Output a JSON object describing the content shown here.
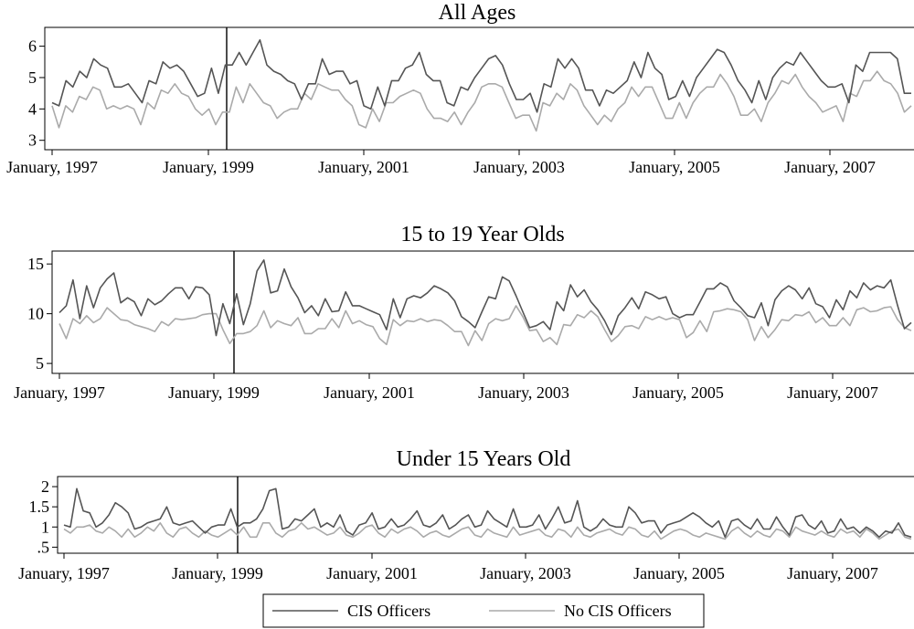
{
  "chart_data": [
    {
      "type": "line",
      "title": "All Ages",
      "ylim": [
        2.7,
        6.6
      ],
      "yticks": [
        3,
        4,
        5,
        6
      ],
      "ytick_labels": [
        "3",
        "4",
        "5",
        "6"
      ],
      "x_ticks": [
        "January, 1997",
        "January, 1999",
        "January, 2001",
        "January, 2003",
        "January, 2005",
        "January, 2007"
      ],
      "vline_at": "January, 1999",
      "series": [
        {
          "name": "CIS Officers",
          "color": "#555555",
          "values": [
            4.2,
            4.1,
            4.9,
            4.7,
            5.2,
            5.0,
            5.6,
            5.4,
            5.3,
            4.7,
            4.7,
            4.8,
            4.5,
            4.2,
            4.9,
            4.8,
            5.5,
            5.3,
            5.4,
            5.2,
            4.8,
            4.4,
            4.5,
            5.3,
            4.5,
            5.4,
            5.4,
            5.8,
            5.4,
            5.8,
            6.2,
            5.4,
            5.2,
            5.1,
            4.9,
            4.8,
            4.3,
            4.8,
            4.8,
            5.6,
            5.1,
            5.2,
            5.2,
            4.8,
            4.9,
            4.1,
            4.0,
            4.7,
            4.1,
            4.9,
            4.9,
            5.3,
            5.4,
            5.8,
            5.1,
            4.9,
            4.9,
            4.2,
            4.1,
            4.7,
            4.6,
            5.0,
            5.3,
            5.6,
            5.7,
            5.4,
            4.8,
            4.3,
            4.3,
            4.5,
            3.9,
            4.8,
            4.7,
            5.6,
            5.3,
            5.6,
            5.3,
            4.6,
            4.6,
            4.1,
            4.6,
            4.5,
            4.7,
            4.9,
            5.5,
            5.0,
            5.8,
            5.3,
            5.1,
            4.3,
            4.4,
            4.9,
            4.4,
            5.0,
            5.3,
            5.6,
            5.9,
            5.8,
            5.4,
            4.9,
            4.6,
            4.2,
            4.9,
            4.3,
            5.0,
            5.3,
            5.5,
            5.4,
            5.8,
            5.5,
            5.2,
            4.9,
            4.7,
            4.7,
            4.8,
            4.2,
            5.4,
            5.2,
            5.8,
            5.8,
            5.8,
            5.8,
            5.6,
            4.5,
            4.5
          ]
        },
        {
          "name": "No CIS Officers",
          "color": "#aaaaaa",
          "values": [
            4.1,
            3.4,
            4.1,
            3.9,
            4.4,
            4.3,
            4.7,
            4.6,
            4.0,
            4.1,
            4.0,
            4.1,
            4.0,
            3.5,
            4.2,
            4.0,
            4.6,
            4.5,
            4.8,
            4.5,
            4.4,
            4.0,
            3.8,
            4.0,
            3.5,
            3.9,
            3.9,
            4.7,
            4.2,
            4.8,
            4.5,
            4.2,
            4.1,
            3.7,
            3.9,
            4.0,
            4.0,
            4.5,
            4.3,
            4.8,
            4.7,
            4.6,
            4.6,
            4.3,
            4.1,
            3.5,
            3.4,
            4.0,
            3.6,
            4.2,
            4.2,
            4.4,
            4.5,
            4.6,
            4.5,
            4.0,
            3.7,
            3.7,
            3.6,
            3.9,
            3.5,
            3.9,
            4.2,
            4.7,
            4.8,
            4.8,
            4.7,
            4.2,
            3.7,
            3.8,
            3.8,
            3.3,
            4.2,
            4.1,
            4.5,
            4.3,
            4.8,
            4.6,
            4.1,
            3.8,
            3.5,
            3.8,
            3.6,
            4.0,
            4.2,
            4.7,
            4.4,
            4.7,
            4.7,
            4.2,
            3.7,
            3.7,
            4.2,
            3.7,
            4.2,
            4.5,
            4.7,
            4.7,
            5.1,
            4.8,
            4.4,
            3.8,
            3.8,
            4.0,
            3.6,
            4.2,
            4.5,
            4.9,
            4.8,
            5.1,
            4.7,
            4.4,
            4.2,
            3.9,
            4.0,
            4.1,
            3.6,
            4.5,
            4.4,
            4.9,
            4.9,
            5.2,
            4.9,
            4.8,
            4.5,
            3.9,
            4.1
          ]
        }
      ]
    },
    {
      "type": "line",
      "title": "15 to 19 Year Olds",
      "ylim": [
        4.0,
        16.3
      ],
      "yticks": [
        5,
        10,
        15
      ],
      "ytick_labels": [
        "5",
        "10",
        "15"
      ],
      "x_ticks": [
        "January, 1997",
        "January, 1999",
        "January, 2001",
        "January, 2003",
        "January, 2005",
        "January, 2007"
      ],
      "vline_at": "January, 1999",
      "series": [
        {
          "name": "CIS Officers",
          "color": "#555555",
          "values": [
            10.1,
            10.8,
            13.4,
            9.5,
            12.8,
            10.6,
            12.6,
            13.5,
            14.1,
            11.1,
            11.6,
            11.2,
            9.8,
            11.5,
            10.9,
            11.3,
            12.0,
            12.6,
            12.6,
            11.5,
            12.7,
            12.6,
            11.9,
            7.8,
            11.0,
            9.0,
            12.0,
            8.9,
            11.0,
            14.3,
            15.4,
            12.1,
            12.3,
            14.5,
            12.7,
            11.6,
            10.1,
            10.8,
            9.8,
            11.5,
            10.2,
            10.3,
            12.2,
            10.8,
            10.8,
            10.5,
            10.2,
            9.9,
            8.4,
            11.5,
            9.6,
            11.5,
            11.8,
            11.6,
            12.1,
            12.8,
            12.5,
            12.1,
            11.3,
            9.7,
            9.2,
            8.6,
            10.2,
            11.7,
            11.5,
            13.7,
            13.3,
            11.8,
            10.2,
            8.6,
            8.8,
            9.2,
            8.4,
            11.2,
            10.3,
            12.9,
            11.7,
            12.4,
            11.2,
            10.4,
            9.3,
            7.9,
            9.8,
            10.6,
            11.6,
            10.5,
            12.2,
            11.9,
            11.5,
            11.7,
            10.0,
            9.6,
            9.9,
            9.9,
            11.2,
            12.5,
            12.5,
            13.1,
            12.7,
            11.3,
            10.6,
            9.8,
            9.6,
            11.1,
            8.8,
            11.4,
            12.3,
            12.8,
            12.4,
            11.5,
            12.6,
            11.0,
            10.7,
            9.6,
            11.4,
            10.4,
            12.3,
            11.6,
            13.1,
            12.4,
            12.8,
            12.6,
            13.4,
            10.8,
            8.5,
            9.1
          ]
        },
        {
          "name": "No CIS Officers",
          "color": "#aaaaaa",
          "values": [
            9.0,
            7.5,
            9.5,
            9.0,
            9.8,
            9.1,
            9.5,
            10.6,
            10.0,
            9.4,
            9.3,
            8.9,
            8.7,
            8.5,
            8.2,
            9.2,
            8.8,
            9.5,
            9.4,
            9.5,
            9.6,
            9.9,
            10.0,
            10.0,
            8.4,
            7.0,
            8.0,
            8.0,
            8.2,
            8.8,
            10.3,
            8.6,
            9.3,
            9.0,
            8.8,
            9.6,
            8.0,
            8.0,
            8.5,
            8.5,
            9.5,
            8.6,
            10.3,
            9.0,
            9.3,
            8.9,
            8.7,
            7.5,
            6.9,
            9.4,
            8.8,
            9.3,
            9.2,
            9.5,
            9.2,
            9.4,
            9.3,
            8.8,
            8.2,
            8.2,
            6.8,
            8.3,
            7.3,
            9.0,
            9.5,
            9.3,
            9.5,
            10.8,
            9.7,
            8.3,
            8.4,
            7.2,
            7.6,
            6.9,
            8.9,
            8.8,
            9.9,
            9.6,
            10.3,
            9.7,
            8.4,
            7.2,
            7.8,
            8.7,
            8.8,
            8.5,
            9.7,
            9.4,
            9.7,
            9.4,
            9.6,
            9.4,
            7.6,
            8.1,
            9.3,
            8.2,
            10.2,
            10.3,
            10.5,
            10.4,
            10.2,
            9.4,
            7.3,
            8.7,
            7.6,
            8.4,
            9.4,
            9.3,
            9.9,
            9.8,
            10.2,
            9.1,
            9.6,
            8.8,
            8.8,
            9.6,
            8.8,
            10.4,
            10.6,
            10.2,
            10.3,
            10.6,
            10.7,
            9.4,
            8.6,
            8.3
          ]
        }
      ]
    },
    {
      "type": "line",
      "title": "Under 15 Years Old",
      "ylim": [
        0.35,
        2.25
      ],
      "yticks": [
        0.5,
        1,
        1.5,
        2
      ],
      "ytick_labels": [
        ".5",
        "1",
        "1.5",
        "2"
      ],
      "x_ticks": [
        "January, 1997",
        "January, 1999",
        "January, 2001",
        "January, 2003",
        "January, 2005",
        "January, 2007"
      ],
      "vline_at": "January, 1999",
      "series": [
        {
          "name": "CIS Officers",
          "color": "#555555",
          "values": [
            1.05,
            1.0,
            1.95,
            1.4,
            1.35,
            1.0,
            1.1,
            1.3,
            1.6,
            1.5,
            1.35,
            0.95,
            1.0,
            1.1,
            1.15,
            1.2,
            1.5,
            1.1,
            1.05,
            1.1,
            1.15,
            1.0,
            0.85,
            1.0,
            1.05,
            1.05,
            1.45,
            1.0,
            1.1,
            1.1,
            1.2,
            1.45,
            1.9,
            1.95,
            0.95,
            1.0,
            1.2,
            1.15,
            1.3,
            1.45,
            1.0,
            1.1,
            1.0,
            1.3,
            0.9,
            0.8,
            1.05,
            1.1,
            1.35,
            0.95,
            1.0,
            1.2,
            1.0,
            1.05,
            1.2,
            1.4,
            1.05,
            1.0,
            1.1,
            1.3,
            0.95,
            1.05,
            1.2,
            1.3,
            1.0,
            1.05,
            1.4,
            1.2,
            1.1,
            1.0,
            1.45,
            1.0,
            1.0,
            1.05,
            1.3,
            0.95,
            1.2,
            1.5,
            1.1,
            1.15,
            1.65,
            1.0,
            0.9,
            1.0,
            1.2,
            1.05,
            1.0,
            1.0,
            1.5,
            1.35,
            1.1,
            1.15,
            1.15,
            0.85,
            1.05,
            1.1,
            1.15,
            1.25,
            1.35,
            1.25,
            1.1,
            1.0,
            1.15,
            0.75,
            1.15,
            1.2,
            1.05,
            0.95,
            1.2,
            0.95,
            0.95,
            1.25,
            1.0,
            0.8,
            1.25,
            1.3,
            1.05,
            0.95,
            1.15,
            0.85,
            0.9,
            1.2,
            0.95,
            1.0,
            0.85,
            1.0,
            0.9,
            0.75,
            0.9,
            0.85,
            1.1,
            0.8,
            0.75
          ]
        },
        {
          "name": "No CIS Officers",
          "color": "#aaaaaa",
          "values": [
            0.95,
            0.85,
            1.0,
            1.0,
            1.05,
            0.9,
            0.85,
            1.0,
            0.9,
            0.75,
            0.95,
            0.75,
            0.85,
            1.0,
            0.9,
            1.1,
            0.85,
            0.75,
            0.95,
            1.0,
            0.85,
            0.75,
            0.9,
            0.8,
            0.75,
            0.85,
            0.95,
            0.8,
            1.0,
            0.75,
            0.75,
            1.1,
            1.1,
            0.85,
            0.75,
            0.9,
            0.95,
            1.1,
            0.95,
            1.0,
            0.9,
            0.8,
            0.85,
            1.0,
            0.8,
            0.75,
            0.85,
            1.0,
            1.05,
            0.85,
            0.75,
            0.95,
            0.85,
            0.95,
            1.0,
            0.9,
            0.75,
            0.85,
            0.9,
            0.8,
            0.75,
            0.85,
            0.95,
            1.0,
            0.8,
            0.75,
            0.95,
            0.85,
            0.8,
            0.75,
            1.0,
            0.8,
            0.85,
            0.9,
            0.95,
            0.8,
            0.75,
            0.95,
            0.9,
            0.75,
            1.0,
            0.8,
            0.75,
            0.85,
            0.9,
            0.95,
            0.85,
            0.8,
            1.0,
            0.95,
            0.8,
            0.75,
            0.9,
            0.7,
            0.8,
            0.9,
            0.95,
            0.9,
            0.8,
            0.75,
            0.85,
            0.8,
            0.75,
            0.7,
            0.9,
            1.0,
            0.85,
            0.75,
            0.9,
            0.8,
            0.75,
            0.95,
            0.9,
            0.75,
            1.0,
            0.9,
            0.85,
            0.8,
            0.9,
            0.8,
            0.75,
            0.95,
            0.85,
            0.9,
            0.75,
            0.95,
            0.85,
            0.7,
            0.8,
            0.9,
            0.95,
            0.75,
            0.7
          ]
        }
      ]
    }
  ],
  "legend": {
    "items": [
      {
        "label": "CIS Officers",
        "color": "#555555"
      },
      {
        "label": "No CIS Officers",
        "color": "#aaaaaa"
      }
    ]
  }
}
